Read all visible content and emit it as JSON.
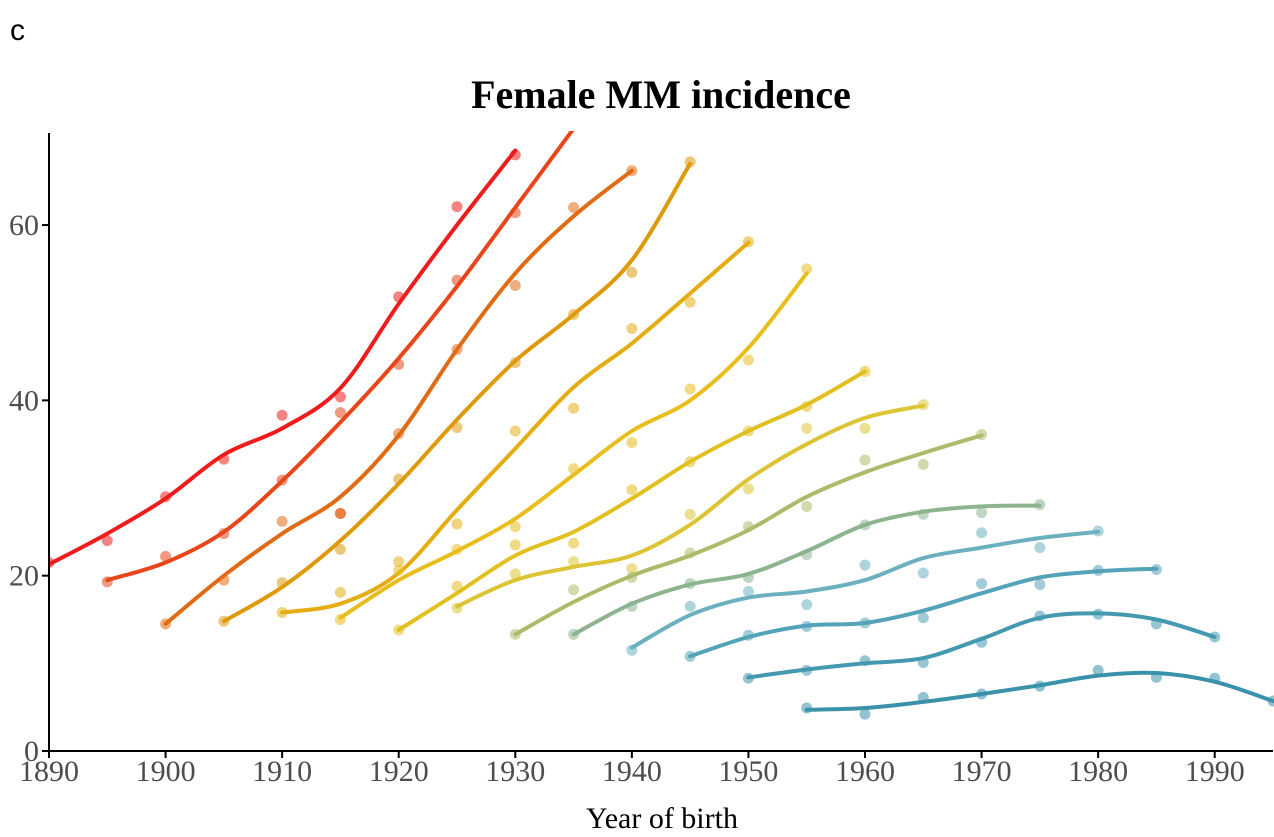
{
  "panel_label": "c",
  "chart_data": {
    "type": "line",
    "title": "Female MM incidence",
    "xlabel": "Year of birth",
    "ylabel": "",
    "xlim": [
      1890,
      1995
    ],
    "ylim": [
      0,
      70.5
    ],
    "x_ticks": [
      1890,
      1900,
      1910,
      1920,
      1930,
      1940,
      1950,
      1960,
      1970,
      1980,
      1990
    ],
    "y_ticks": [
      0,
      20,
      40,
      60
    ],
    "y_tick_labels": [
      "0",
      "20",
      "40",
      "60"
    ],
    "grid": false,
    "legend": "none",
    "series": [
      {
        "color": "#ee1c1c",
        "points": [
          [
            1885,
            19.0
          ],
          [
            1890,
            21.5
          ],
          [
            1895,
            24.0
          ],
          [
            1900,
            29.0
          ],
          [
            1905,
            33.3
          ],
          [
            1910,
            38.3
          ],
          [
            1915,
            40.4
          ],
          [
            1920,
            51.8
          ],
          [
            1925,
            62.1
          ],
          [
            1930,
            68.0
          ]
        ],
        "curve": [
          [
            1890,
            21.3
          ],
          [
            1895,
            24.8
          ],
          [
            1900,
            28.8
          ],
          [
            1905,
            33.8
          ],
          [
            1910,
            36.8
          ],
          [
            1915,
            41.4
          ],
          [
            1920,
            51.0
          ],
          [
            1925,
            60.0
          ],
          [
            1930,
            68.5
          ]
        ]
      },
      {
        "color": "#e8461a",
        "points": [
          [
            1895,
            19.3
          ],
          [
            1900,
            22.2
          ],
          [
            1905,
            24.8
          ],
          [
            1910,
            30.9
          ],
          [
            1915,
            38.6
          ],
          [
            1915,
            27.1
          ],
          [
            1920,
            44.1
          ],
          [
            1925,
            53.7
          ],
          [
            1930,
            61.4
          ],
          [
            1935,
            71.5
          ]
        ],
        "curve": [
          [
            1895,
            19.5
          ],
          [
            1900,
            21.5
          ],
          [
            1905,
            25.0
          ],
          [
            1910,
            30.8
          ],
          [
            1915,
            37.5
          ],
          [
            1920,
            44.8
          ],
          [
            1925,
            53.0
          ],
          [
            1930,
            62.0
          ],
          [
            1935,
            71.0
          ]
        ]
      },
      {
        "color": "#e06b14",
        "points": [
          [
            1900,
            14.5
          ],
          [
            1905,
            19.5
          ],
          [
            1910,
            26.2
          ],
          [
            1915,
            27.1
          ],
          [
            1920,
            36.2
          ],
          [
            1925,
            45.8
          ],
          [
            1930,
            53.1
          ],
          [
            1935,
            62.0
          ],
          [
            1940,
            66.2
          ]
        ],
        "curve": [
          [
            1900,
            14.5
          ],
          [
            1905,
            20.0
          ],
          [
            1910,
            24.8
          ],
          [
            1915,
            29.0
          ],
          [
            1920,
            36.0
          ],
          [
            1925,
            45.8
          ],
          [
            1930,
            54.5
          ],
          [
            1935,
            61.0
          ],
          [
            1940,
            66.2
          ]
        ]
      },
      {
        "color": "#df9a0c",
        "points": [
          [
            1905,
            14.8
          ],
          [
            1910,
            19.2
          ],
          [
            1915,
            23.0
          ],
          [
            1920,
            31.0
          ],
          [
            1925,
            36.9
          ],
          [
            1930,
            44.3
          ],
          [
            1935,
            49.8
          ],
          [
            1940,
            54.6
          ],
          [
            1945,
            67.2
          ]
        ],
        "curve": [
          [
            1905,
            14.8
          ],
          [
            1910,
            18.7
          ],
          [
            1915,
            24.0
          ],
          [
            1920,
            30.5
          ],
          [
            1925,
            37.8
          ],
          [
            1930,
            44.5
          ],
          [
            1935,
            49.8
          ],
          [
            1940,
            56.0
          ],
          [
            1945,
            67.0
          ]
        ]
      },
      {
        "color": "#e5ad14",
        "points": [
          [
            1910,
            15.8
          ],
          [
            1915,
            18.1
          ],
          [
            1920,
            21.6
          ],
          [
            1925,
            25.9
          ],
          [
            1930,
            36.5
          ],
          [
            1935,
            39.1
          ],
          [
            1940,
            48.2
          ],
          [
            1945,
            51.2
          ],
          [
            1950,
            58.1
          ]
        ],
        "curve": [
          [
            1910,
            15.8
          ],
          [
            1915,
            16.8
          ],
          [
            1920,
            20.3
          ],
          [
            1925,
            27.5
          ],
          [
            1930,
            34.5
          ],
          [
            1935,
            41.5
          ],
          [
            1940,
            46.5
          ],
          [
            1945,
            52.2
          ],
          [
            1950,
            58.0
          ]
        ]
      },
      {
        "color": "#e8be1c",
        "points": [
          [
            1915,
            15.0
          ],
          [
            1920,
            20.6
          ],
          [
            1925,
            23.0
          ],
          [
            1930,
            25.6
          ],
          [
            1935,
            32.2
          ],
          [
            1940,
            35.2
          ],
          [
            1945,
            41.3
          ],
          [
            1950,
            44.6
          ],
          [
            1955,
            55.0
          ]
        ],
        "curve": [
          [
            1915,
            15.2
          ],
          [
            1920,
            19.5
          ],
          [
            1925,
            22.8
          ],
          [
            1930,
            26.5
          ],
          [
            1935,
            31.5
          ],
          [
            1940,
            36.5
          ],
          [
            1945,
            40.0
          ],
          [
            1950,
            46.0
          ],
          [
            1955,
            54.5
          ]
        ]
      },
      {
        "color": "#e2c020",
        "points": [
          [
            1920,
            13.8
          ],
          [
            1925,
            18.8
          ],
          [
            1930,
            23.5
          ],
          [
            1935,
            23.7
          ],
          [
            1940,
            29.8
          ],
          [
            1945,
            33.0
          ],
          [
            1950,
            36.5
          ],
          [
            1955,
            39.3
          ],
          [
            1960,
            43.3
          ]
        ],
        "curve": [
          [
            1920,
            13.8
          ],
          [
            1925,
            18.0
          ],
          [
            1930,
            22.3
          ],
          [
            1935,
            25.0
          ],
          [
            1940,
            28.8
          ],
          [
            1945,
            33.0
          ],
          [
            1950,
            36.5
          ],
          [
            1955,
            39.5
          ],
          [
            1960,
            43.3
          ]
        ]
      },
      {
        "color": "#dcc435",
        "points": [
          [
            1925,
            16.3
          ],
          [
            1930,
            20.2
          ],
          [
            1935,
            21.6
          ],
          [
            1940,
            20.8
          ],
          [
            1945,
            27.0
          ],
          [
            1950,
            29.9
          ],
          [
            1955,
            36.8
          ],
          [
            1960,
            36.8
          ],
          [
            1965,
            39.5
          ]
        ],
        "curve": [
          [
            1925,
            16.5
          ],
          [
            1930,
            19.5
          ],
          [
            1935,
            21.0
          ],
          [
            1940,
            22.3
          ],
          [
            1945,
            25.8
          ],
          [
            1950,
            31.0
          ],
          [
            1955,
            35.0
          ],
          [
            1960,
            38.0
          ],
          [
            1965,
            39.4
          ]
        ]
      },
      {
        "color": "#aabb6a",
        "points": [
          [
            1930,
            13.3
          ],
          [
            1935,
            18.4
          ],
          [
            1940,
            19.8
          ],
          [
            1945,
            22.6
          ],
          [
            1950,
            25.6
          ],
          [
            1955,
            27.9
          ],
          [
            1960,
            33.2
          ],
          [
            1965,
            32.7
          ],
          [
            1970,
            36.1
          ]
        ],
        "curve": [
          [
            1930,
            13.3
          ],
          [
            1935,
            17.0
          ],
          [
            1940,
            20.0
          ],
          [
            1945,
            22.3
          ],
          [
            1950,
            25.2
          ],
          [
            1955,
            29.0
          ],
          [
            1960,
            31.8
          ],
          [
            1965,
            34.0
          ],
          [
            1970,
            36.0
          ]
        ]
      },
      {
        "color": "#8db48f",
        "points": [
          [
            1935,
            13.3
          ],
          [
            1940,
            16.5
          ],
          [
            1945,
            19.1
          ],
          [
            1950,
            19.8
          ],
          [
            1955,
            22.4
          ],
          [
            1960,
            25.8
          ],
          [
            1965,
            27.0
          ],
          [
            1970,
            27.2
          ],
          [
            1975,
            28.1
          ]
        ],
        "curve": [
          [
            1935,
            13.3
          ],
          [
            1940,
            16.8
          ],
          [
            1945,
            19.0
          ],
          [
            1950,
            20.2
          ],
          [
            1955,
            22.8
          ],
          [
            1960,
            25.8
          ],
          [
            1965,
            27.3
          ],
          [
            1970,
            27.9
          ],
          [
            1975,
            28.0
          ]
        ]
      },
      {
        "color": "#6cb0c0",
        "points": [
          [
            1940,
            11.5
          ],
          [
            1945,
            16.5
          ],
          [
            1950,
            18.2
          ],
          [
            1955,
            16.7
          ],
          [
            1960,
            21.2
          ],
          [
            1965,
            20.3
          ],
          [
            1970,
            24.9
          ],
          [
            1975,
            23.2
          ],
          [
            1980,
            25.1
          ]
        ],
        "curve": [
          [
            1940,
            11.8
          ],
          [
            1945,
            15.5
          ],
          [
            1950,
            17.5
          ],
          [
            1955,
            18.2
          ],
          [
            1960,
            19.5
          ],
          [
            1965,
            22.0
          ],
          [
            1970,
            23.2
          ],
          [
            1975,
            24.3
          ],
          [
            1980,
            25.0
          ]
        ]
      },
      {
        "color": "#54a3b8",
        "points": [
          [
            1945,
            10.8
          ],
          [
            1950,
            13.2
          ],
          [
            1955,
            14.2
          ],
          [
            1960,
            14.6
          ],
          [
            1965,
            15.2
          ],
          [
            1970,
            19.1
          ],
          [
            1975,
            19.0
          ],
          [
            1980,
            20.6
          ],
          [
            1985,
            20.7
          ]
        ],
        "curve": [
          [
            1945,
            10.8
          ],
          [
            1950,
            13.0
          ],
          [
            1955,
            14.3
          ],
          [
            1960,
            14.6
          ],
          [
            1965,
            16.0
          ],
          [
            1970,
            18.0
          ],
          [
            1975,
            19.8
          ],
          [
            1980,
            20.5
          ],
          [
            1985,
            20.8
          ]
        ]
      },
      {
        "color": "#4499b0",
        "points": [
          [
            1950,
            8.3
          ],
          [
            1955,
            9.2
          ],
          [
            1960,
            10.3
          ],
          [
            1965,
            10.1
          ],
          [
            1970,
            12.4
          ],
          [
            1975,
            15.4
          ],
          [
            1980,
            15.6
          ],
          [
            1985,
            14.5
          ],
          [
            1990,
            13.0
          ]
        ],
        "curve": [
          [
            1950,
            8.4
          ],
          [
            1955,
            9.3
          ],
          [
            1960,
            10.0
          ],
          [
            1965,
            10.6
          ],
          [
            1970,
            12.8
          ],
          [
            1975,
            15.2
          ],
          [
            1980,
            15.7
          ],
          [
            1985,
            15.0
          ],
          [
            1990,
            13.0
          ]
        ]
      },
      {
        "color": "#3a92aa",
        "points": [
          [
            1955,
            4.9
          ],
          [
            1960,
            4.2
          ],
          [
            1965,
            6.1
          ],
          [
            1970,
            6.5
          ],
          [
            1975,
            7.4
          ],
          [
            1980,
            9.2
          ],
          [
            1985,
            8.4
          ],
          [
            1990,
            8.3
          ],
          [
            1995,
            5.7
          ]
        ],
        "curve": [
          [
            1955,
            4.7
          ],
          [
            1960,
            4.9
          ],
          [
            1965,
            5.6
          ],
          [
            1970,
            6.5
          ],
          [
            1975,
            7.5
          ],
          [
            1980,
            8.6
          ],
          [
            1985,
            8.9
          ],
          [
            1990,
            7.9
          ],
          [
            1995,
            5.7
          ]
        ]
      }
    ]
  }
}
